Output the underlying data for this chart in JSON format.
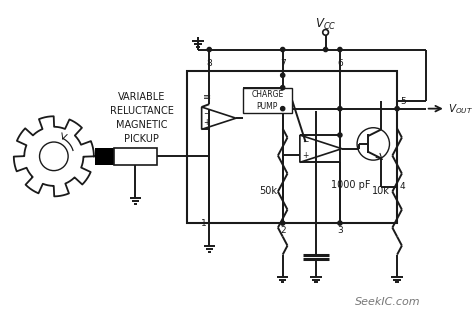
{
  "bg_color": "#ffffff",
  "line_color": "#1a1a1a",
  "text_color": "#1a1a1a",
  "watermark": "SeekIC.com",
  "comp_label": "CHARGE\nPUMP",
  "pickup_label": "VARIABLE\nRELUCTANCE\nMAGNETIC\nPICKUP",
  "r1_label": "50k",
  "c_label": "1000 pF",
  "r2_label": "10k",
  "label_8": "8",
  "label_7": "7",
  "label_6": "6",
  "label_5": "5",
  "label_1": "1",
  "label_2": "2",
  "label_3": "3",
  "label_4": "4"
}
